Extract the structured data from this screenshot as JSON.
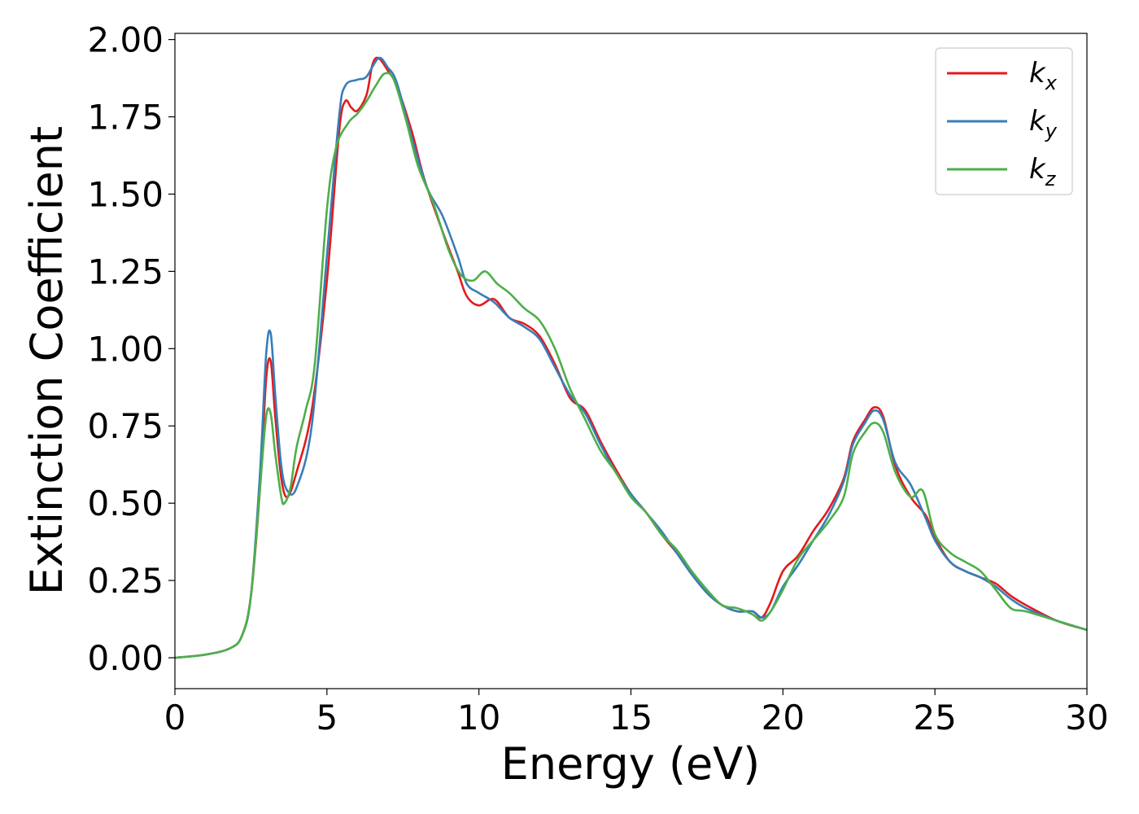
{
  "chart_data": {
    "type": "line",
    "xlabel": "Energy (eV)",
    "ylabel": "Extinction Coefficient",
    "xlim": [
      0,
      30
    ],
    "ylim": [
      -0.1,
      2.02
    ],
    "xticks": [
      "0",
      "5",
      "10",
      "15",
      "20",
      "25",
      "30"
    ],
    "yticks": [
      "0.00",
      "0.25",
      "0.50",
      "0.75",
      "1.00",
      "1.25",
      "1.50",
      "1.75",
      "2.00"
    ],
    "grid": false,
    "legend_position": "top-right",
    "series": [
      {
        "name": "kx",
        "label_main": "k",
        "label_sub": "x",
        "color": "#e41a1c",
        "points": [
          [
            0,
            0
          ],
          [
            1,
            0.01
          ],
          [
            1.8,
            0.03
          ],
          [
            2.2,
            0.07
          ],
          [
            2.5,
            0.2
          ],
          [
            2.8,
            0.55
          ],
          [
            3.0,
            0.9
          ],
          [
            3.15,
            0.96
          ],
          [
            3.3,
            0.78
          ],
          [
            3.5,
            0.58
          ],
          [
            3.7,
            0.52
          ],
          [
            4.0,
            0.6
          ],
          [
            4.5,
            0.8
          ],
          [
            5.0,
            1.22
          ],
          [
            5.4,
            1.7
          ],
          [
            5.6,
            1.8
          ],
          [
            5.8,
            1.78
          ],
          [
            6.0,
            1.77
          ],
          [
            6.3,
            1.82
          ],
          [
            6.5,
            1.92
          ],
          [
            6.7,
            1.94
          ],
          [
            7.0,
            1.9
          ],
          [
            7.3,
            1.85
          ],
          [
            7.8,
            1.7
          ],
          [
            8.2,
            1.55
          ],
          [
            8.8,
            1.38
          ],
          [
            9.3,
            1.25
          ],
          [
            9.6,
            1.17
          ],
          [
            10.0,
            1.14
          ],
          [
            10.5,
            1.16
          ],
          [
            11.0,
            1.1
          ],
          [
            11.5,
            1.08
          ],
          [
            12.0,
            1.04
          ],
          [
            12.5,
            0.95
          ],
          [
            13.0,
            0.84
          ],
          [
            13.5,
            0.8
          ],
          [
            14.0,
            0.7
          ],
          [
            14.5,
            0.61
          ],
          [
            15.0,
            0.53
          ],
          [
            15.5,
            0.47
          ],
          [
            16.0,
            0.4
          ],
          [
            16.5,
            0.34
          ],
          [
            17.0,
            0.27
          ],
          [
            17.5,
            0.21
          ],
          [
            18.0,
            0.17
          ],
          [
            18.5,
            0.15
          ],
          [
            19.0,
            0.15
          ],
          [
            19.3,
            0.13
          ],
          [
            19.6,
            0.18
          ],
          [
            20.0,
            0.28
          ],
          [
            20.5,
            0.33
          ],
          [
            21.0,
            0.41
          ],
          [
            21.5,
            0.48
          ],
          [
            22.0,
            0.58
          ],
          [
            22.3,
            0.7
          ],
          [
            22.7,
            0.77
          ],
          [
            23.0,
            0.81
          ],
          [
            23.3,
            0.78
          ],
          [
            23.7,
            0.62
          ],
          [
            24.2,
            0.52
          ],
          [
            24.7,
            0.46
          ],
          [
            25.0,
            0.39
          ],
          [
            25.5,
            0.31
          ],
          [
            26.0,
            0.28
          ],
          [
            26.5,
            0.26
          ],
          [
            27.0,
            0.24
          ],
          [
            27.5,
            0.2
          ],
          [
            28.0,
            0.17
          ],
          [
            29.0,
            0.12
          ],
          [
            30.0,
            0.09
          ]
        ]
      },
      {
        "name": "ky",
        "label_main": "k",
        "label_sub": "y",
        "color": "#377eb8",
        "points": [
          [
            0,
            0
          ],
          [
            1,
            0.01
          ],
          [
            1.8,
            0.03
          ],
          [
            2.2,
            0.07
          ],
          [
            2.5,
            0.2
          ],
          [
            2.8,
            0.6
          ],
          [
            3.0,
            0.98
          ],
          [
            3.15,
            1.05
          ],
          [
            3.3,
            0.85
          ],
          [
            3.5,
            0.62
          ],
          [
            3.7,
            0.54
          ],
          [
            4.0,
            0.55
          ],
          [
            4.5,
            0.75
          ],
          [
            5.0,
            1.3
          ],
          [
            5.4,
            1.75
          ],
          [
            5.6,
            1.85
          ],
          [
            6.0,
            1.87
          ],
          [
            6.3,
            1.88
          ],
          [
            6.7,
            1.94
          ],
          [
            7.0,
            1.91
          ],
          [
            7.3,
            1.86
          ],
          [
            7.8,
            1.68
          ],
          [
            8.3,
            1.52
          ],
          [
            8.8,
            1.43
          ],
          [
            9.3,
            1.3
          ],
          [
            9.6,
            1.21
          ],
          [
            10.0,
            1.18
          ],
          [
            10.5,
            1.15
          ],
          [
            11.0,
            1.1
          ],
          [
            11.5,
            1.07
          ],
          [
            12.0,
            1.03
          ],
          [
            12.5,
            0.94
          ],
          [
            13.0,
            0.85
          ],
          [
            13.5,
            0.79
          ],
          [
            14.0,
            0.69
          ],
          [
            14.5,
            0.6
          ],
          [
            15.0,
            0.53
          ],
          [
            15.5,
            0.47
          ],
          [
            16.0,
            0.41
          ],
          [
            16.5,
            0.34
          ],
          [
            17.0,
            0.27
          ],
          [
            17.5,
            0.21
          ],
          [
            18.0,
            0.17
          ],
          [
            18.5,
            0.15
          ],
          [
            19.0,
            0.15
          ],
          [
            19.3,
            0.13
          ],
          [
            19.6,
            0.15
          ],
          [
            20.0,
            0.23
          ],
          [
            20.5,
            0.3
          ],
          [
            21.0,
            0.38
          ],
          [
            21.5,
            0.46
          ],
          [
            22.0,
            0.57
          ],
          [
            22.3,
            0.69
          ],
          [
            22.7,
            0.76
          ],
          [
            23.0,
            0.8
          ],
          [
            23.3,
            0.77
          ],
          [
            23.7,
            0.63
          ],
          [
            24.2,
            0.56
          ],
          [
            24.7,
            0.45
          ],
          [
            25.0,
            0.38
          ],
          [
            25.5,
            0.31
          ],
          [
            26.0,
            0.28
          ],
          [
            26.5,
            0.26
          ],
          [
            27.0,
            0.23
          ],
          [
            27.5,
            0.19
          ],
          [
            28.0,
            0.16
          ],
          [
            29.0,
            0.12
          ],
          [
            30.0,
            0.09
          ]
        ]
      },
      {
        "name": "kz",
        "label_main": "k",
        "label_sub": "z",
        "color": "#4daf4a",
        "points": [
          [
            0,
            0
          ],
          [
            1,
            0.01
          ],
          [
            1.8,
            0.03
          ],
          [
            2.2,
            0.07
          ],
          [
            2.5,
            0.2
          ],
          [
            2.8,
            0.55
          ],
          [
            3.0,
            0.78
          ],
          [
            3.15,
            0.79
          ],
          [
            3.3,
            0.66
          ],
          [
            3.5,
            0.52
          ],
          [
            3.6,
            0.5
          ],
          [
            3.8,
            0.55
          ],
          [
            4.0,
            0.68
          ],
          [
            4.3,
            0.8
          ],
          [
            4.6,
            0.95
          ],
          [
            5.0,
            1.45
          ],
          [
            5.3,
            1.65
          ],
          [
            5.7,
            1.73
          ],
          [
            6.0,
            1.76
          ],
          [
            6.3,
            1.8
          ],
          [
            6.6,
            1.85
          ],
          [
            6.9,
            1.89
          ],
          [
            7.2,
            1.87
          ],
          [
            7.6,
            1.74
          ],
          [
            8.0,
            1.59
          ],
          [
            8.5,
            1.47
          ],
          [
            9.0,
            1.32
          ],
          [
            9.4,
            1.24
          ],
          [
            9.8,
            1.22
          ],
          [
            10.2,
            1.25
          ],
          [
            10.6,
            1.21
          ],
          [
            11.0,
            1.18
          ],
          [
            11.5,
            1.13
          ],
          [
            12.0,
            1.09
          ],
          [
            12.5,
            1.0
          ],
          [
            13.0,
            0.87
          ],
          [
            13.5,
            0.77
          ],
          [
            14.0,
            0.67
          ],
          [
            14.5,
            0.6
          ],
          [
            15.0,
            0.52
          ],
          [
            15.5,
            0.47
          ],
          [
            16.0,
            0.4
          ],
          [
            16.5,
            0.35
          ],
          [
            17.0,
            0.28
          ],
          [
            17.5,
            0.22
          ],
          [
            18.0,
            0.17
          ],
          [
            18.5,
            0.16
          ],
          [
            19.0,
            0.14
          ],
          [
            19.3,
            0.12
          ],
          [
            19.6,
            0.15
          ],
          [
            20.0,
            0.22
          ],
          [
            20.5,
            0.32
          ],
          [
            21.0,
            0.38
          ],
          [
            21.5,
            0.44
          ],
          [
            22.0,
            0.52
          ],
          [
            22.3,
            0.66
          ],
          [
            22.7,
            0.73
          ],
          [
            23.0,
            0.76
          ],
          [
            23.3,
            0.73
          ],
          [
            23.7,
            0.6
          ],
          [
            24.2,
            0.52
          ],
          [
            24.6,
            0.54
          ],
          [
            25.0,
            0.4
          ],
          [
            25.5,
            0.34
          ],
          [
            26.0,
            0.31
          ],
          [
            26.5,
            0.28
          ],
          [
            27.0,
            0.22
          ],
          [
            27.5,
            0.16
          ],
          [
            28.0,
            0.15
          ],
          [
            29.0,
            0.12
          ],
          [
            30.0,
            0.09
          ]
        ]
      }
    ]
  }
}
